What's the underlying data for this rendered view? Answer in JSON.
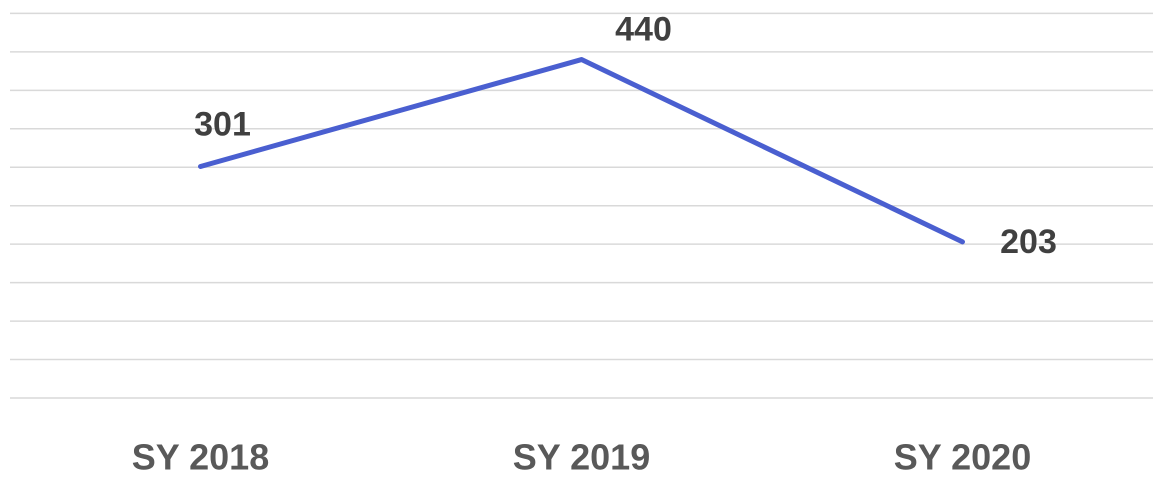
{
  "chart_data": {
    "type": "line",
    "categories": [
      "SY 2018",
      "SY 2019",
      "SY 2020"
    ],
    "series": [
      {
        "color": "#4a5fd0",
        "values": [
          301,
          440,
          203
        ]
      }
    ],
    "ylim": [
      0,
      500
    ],
    "yticks": [
      0,
      50,
      100,
      150,
      200,
      250,
      300,
      350,
      400,
      450,
      500
    ],
    "grid": true
  }
}
